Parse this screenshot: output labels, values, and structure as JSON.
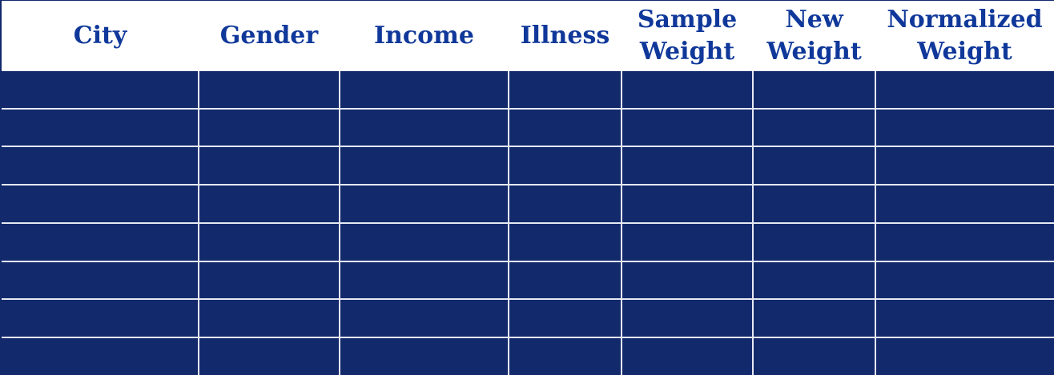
{
  "table": {
    "headers": [
      {
        "lines": [
          "City"
        ]
      },
      {
        "lines": [
          "Gender"
        ]
      },
      {
        "lines": [
          "Income"
        ]
      },
      {
        "lines": [
          "Illness"
        ]
      },
      {
        "lines": [
          "Sample",
          "Weight"
        ]
      },
      {
        "lines": [
          "New",
          "Weight"
        ]
      },
      {
        "lines": [
          "Normalized",
          "Weight"
        ]
      }
    ],
    "row_count": 8,
    "colors": {
      "header_text": "#10389a",
      "cell_fill": "#12296c",
      "grid_line": "#e6e9f2"
    }
  }
}
